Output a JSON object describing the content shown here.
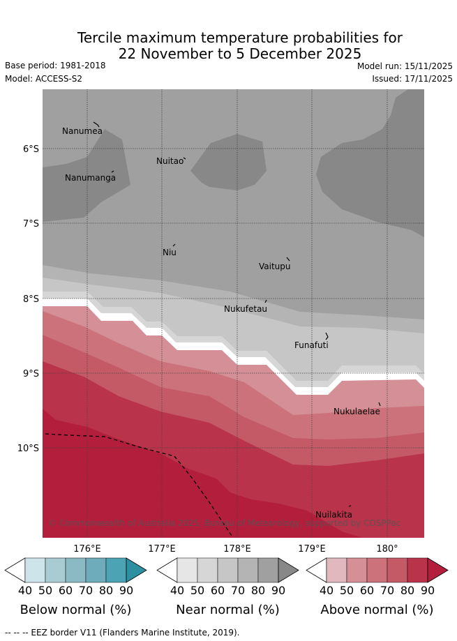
{
  "title": {
    "line1": "Tercile maximum temperature probabilities for",
    "line2": "22 November to 5 December 2025"
  },
  "meta": {
    "base_period": "Base period: 1981-2018",
    "model": "Model: ACCESS-S2",
    "model_run": "Model run: 15/11/2025",
    "issued": "Issued: 17/11/2025"
  },
  "map": {
    "lat_labels": [
      "6°S",
      "7°S",
      "8°S",
      "9°S",
      "10°S"
    ],
    "lon_labels": [
      "176°E",
      "177°E",
      "178°E",
      "179°E",
      "180°"
    ],
    "places": [
      "Nanumea",
      "Nuitao",
      "Nanumanga",
      "Niu",
      "Vaitupu",
      "Nukufetau",
      "Funafuti",
      "Nukulaelae",
      "Nuilakita"
    ],
    "copyright": "© Commonwealth of Australia 2025, Bureau of Meteorology, supported by COSPPac"
  },
  "legends": [
    {
      "label": "Below normal (%)",
      "ticks": [
        "40",
        "50",
        "60",
        "70",
        "80",
        "90"
      ],
      "colors": [
        "#cde4ea",
        "#a9ccd3",
        "#8bbac5",
        "#6eacbb",
        "#4ba3b3",
        "#2e8fa0"
      ]
    },
    {
      "label": "Near normal (%)",
      "ticks": [
        "40",
        "50",
        "60",
        "70",
        "80",
        "90"
      ],
      "colors": [
        "#e6e6e6",
        "#d6d6d6",
        "#c6c6c6",
        "#b4b4b4",
        "#a0a0a0",
        "#888888"
      ]
    },
    {
      "label": "Above normal (%)",
      "ticks": [
        "40",
        "50",
        "60",
        "70",
        "80",
        "90"
      ],
      "colors": [
        "#e2b8bf",
        "#d48f97",
        "#cc727b",
        "#c45a66",
        "#b9344a",
        "#b21e3c"
      ]
    }
  ],
  "footer": "-- -- -- EEZ border V11 (Flanders Marine Institute, 2019)."
}
